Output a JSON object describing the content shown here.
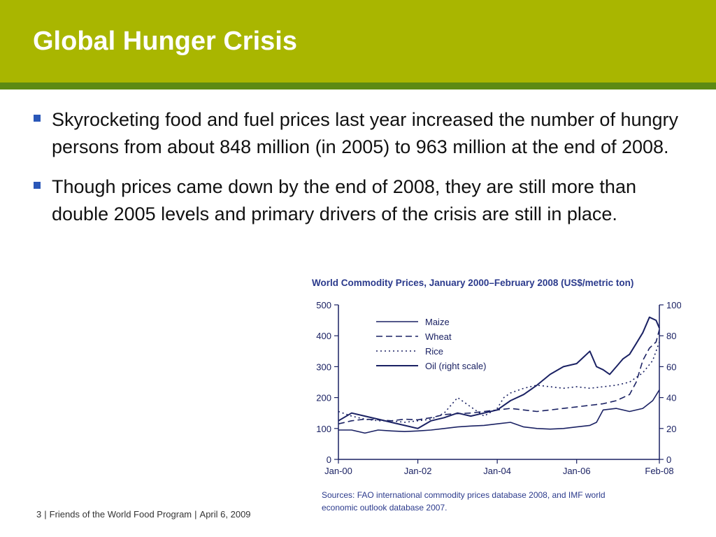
{
  "slide": {
    "title": "Global Hunger Crisis",
    "bullets": [
      "Skyrocketing food and fuel prices last year increased the number of hungry persons from about 848 million (in 2005) to 963 million at the end of 2008.",
      "Though prices came down by the end of 2008, they are still more than double 2005 levels and primary drivers of the crisis are still in place."
    ]
  },
  "footer": {
    "page": "3",
    "org": "Friends of the World Food Program",
    "date": "April 6, 2009",
    "separator": "|"
  },
  "colors": {
    "title_bar": "#a9b600",
    "title_rule": "#5c8a13",
    "bullet_marker": "#2a57b8",
    "chart_title": "#2b3a8c",
    "chart_ink": "#1a2163"
  },
  "chart_data": {
    "type": "line",
    "title": "World Commodity Prices, January 2000–February 2008 (US$/metric ton)",
    "x_ticks": [
      "Jan-00",
      "Jan-02",
      "Jan-04",
      "Jan-06",
      "Feb-08"
    ],
    "x_tick_months": [
      0,
      24,
      48,
      72,
      97
    ],
    "x_range": [
      0,
      97
    ],
    "ylim_left": [
      0,
      500
    ],
    "yticks_left": [
      "0",
      "100",
      "200",
      "300",
      "400",
      "500"
    ],
    "ylim_right": [
      0,
      100
    ],
    "yticks_right": [
      "0",
      "20",
      "40",
      "60",
      "80",
      "100"
    ],
    "legend_position": "top-left",
    "grid": false,
    "sources": "Sources:  FAO international commodity prices database 2008, and IMF world economic outlook database 2007.",
    "series": [
      {
        "name": "Maize",
        "axis": "left",
        "style": "solid",
        "x": [
          0,
          4,
          8,
          12,
          16,
          20,
          24,
          28,
          32,
          36,
          40,
          44,
          48,
          52,
          56,
          60,
          64,
          68,
          72,
          76,
          78,
          80,
          84,
          88,
          92,
          95,
          97
        ],
        "y": [
          95,
          95,
          85,
          95,
          92,
          90,
          92,
          95,
          100,
          105,
          108,
          110,
          115,
          120,
          105,
          100,
          98,
          100,
          105,
          110,
          120,
          160,
          165,
          155,
          165,
          190,
          225
        ]
      },
      {
        "name": "Wheat",
        "axis": "left",
        "style": "dashed",
        "x": [
          0,
          4,
          8,
          12,
          16,
          20,
          24,
          28,
          32,
          36,
          40,
          44,
          48,
          52,
          56,
          60,
          64,
          68,
          72,
          76,
          80,
          84,
          86,
          88,
          90,
          92,
          94,
          96,
          97
        ],
        "y": [
          115,
          125,
          130,
          128,
          125,
          130,
          128,
          135,
          145,
          148,
          150,
          155,
          160,
          165,
          160,
          155,
          160,
          165,
          170,
          175,
          180,
          190,
          200,
          210,
          250,
          320,
          360,
          380,
          420
        ]
      },
      {
        "name": "Rice",
        "axis": "left",
        "style": "dotted",
        "x": [
          0,
          4,
          8,
          12,
          16,
          20,
          24,
          28,
          32,
          36,
          40,
          44,
          48,
          50,
          52,
          56,
          60,
          64,
          68,
          72,
          76,
          80,
          84,
          88,
          92,
          95,
          97
        ],
        "y": [
          155,
          140,
          130,
          125,
          125,
          120,
          125,
          130,
          150,
          200,
          170,
          140,
          165,
          200,
          215,
          230,
          240,
          235,
          230,
          235,
          230,
          235,
          240,
          250,
          280,
          320,
          380
        ]
      },
      {
        "name": "Oil (right scale)",
        "axis": "right",
        "style": "solid",
        "x": [
          0,
          4,
          8,
          12,
          16,
          20,
          24,
          28,
          32,
          36,
          40,
          44,
          48,
          52,
          56,
          60,
          64,
          68,
          72,
          74,
          76,
          78,
          80,
          82,
          84,
          86,
          88,
          90,
          92,
          94,
          96,
          97
        ],
        "y": [
          25,
          30,
          28,
          26,
          24,
          22,
          20,
          25,
          27,
          30,
          28,
          30,
          32,
          38,
          42,
          48,
          55,
          60,
          62,
          66,
          70,
          60,
          58,
          55,
          60,
          65,
          68,
          75,
          82,
          92,
          90,
          85
        ]
      }
    ]
  }
}
